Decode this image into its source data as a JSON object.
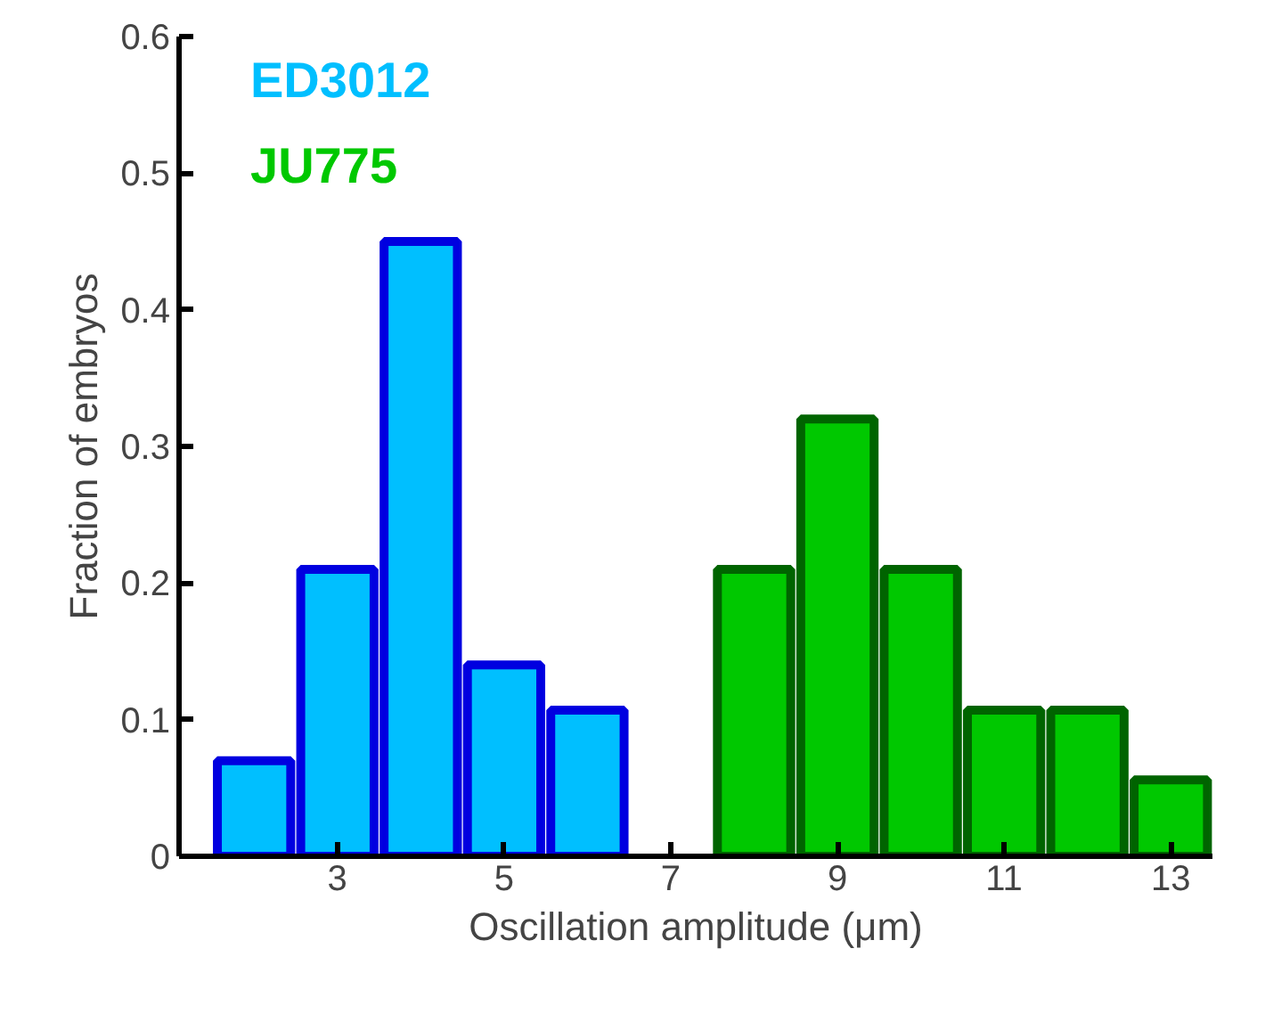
{
  "chart_data": {
    "type": "bar",
    "xlabel": "Oscillation amplitude (μm)",
    "ylabel": "Fraction of embryos",
    "xlim": [
      1.1,
      13.5
    ],
    "xticks": [
      3,
      5,
      7,
      9,
      11,
      13
    ],
    "ylim": [
      0,
      0.6
    ],
    "yticks": [
      0,
      0.1,
      0.2,
      0.3,
      0.4,
      0.5,
      0.6
    ],
    "grid": false,
    "legend": "top left",
    "series": [
      {
        "name": "ED3012",
        "color": "#00bfff",
        "x": [
          2,
          3,
          4,
          5,
          6
        ],
        "values": [
          0.07,
          0.21,
          0.45,
          0.14,
          0.107
        ]
      },
      {
        "name": "JU775",
        "color": "#00c800",
        "x": [
          8,
          9,
          10,
          11,
          12,
          13
        ],
        "values": [
          0.21,
          0.32,
          0.21,
          0.107,
          0.107,
          0.056
        ]
      }
    ]
  }
}
